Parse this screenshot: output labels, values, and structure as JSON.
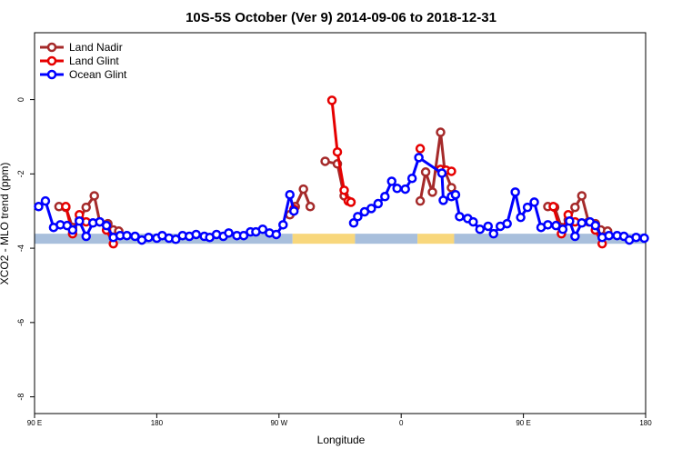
{
  "chart_data": {
    "type": "line",
    "title": "10S-5S October (Ver 9)   2014-09-06 to 2018-12-31",
    "x_label": "Longitude",
    "y_label": "XCO2 - MLO trend (ppm)",
    "xlim": [
      90,
      540
    ],
    "ylim": [
      -8.45,
      1.8
    ],
    "xticks": [
      {
        "value": 90,
        "label": "90 E"
      },
      180,
      {
        "value": 270,
        "label": "90 W"
      },
      {
        "value": 360,
        "label": "0"
      },
      {
        "value": 450,
        "label": "90 E"
      },
      {
        "value": 540,
        "label": "180"
      }
    ],
    "yticks": [
      0,
      -2,
      -4,
      -6,
      -8
    ],
    "legend": "top-left",
    "surface_band": {
      "ylim": [
        -3.88,
        -3.61
      ],
      "segments": [
        {
          "xlim": [
            90,
            280
          ],
          "color": "#a8bfdc"
        },
        {
          "xlim": [
            280,
            326
          ],
          "color": "#f8d77c"
        },
        {
          "xlim": [
            326,
            372
          ],
          "color": "#a8bfdc"
        },
        {
          "xlim": [
            372,
            399
          ],
          "color": "#f8d77c"
        },
        {
          "xlim": [
            399,
            540
          ],
          "color": "#a8bfdc"
        }
      ]
    },
    "series": [
      {
        "name": "Land Nadir",
        "color": "#a52a2a",
        "x": [
          108,
          113,
          118,
          123,
          128,
          134,
          138,
          144,
          148,
          152,
          null,
          278,
          282,
          288,
          293,
          null,
          304,
          313,
          318,
          323,
          null,
          374,
          378,
          383,
          389,
          392,
          397,
          399,
          null,
          468,
          473,
          478,
          483,
          488,
          493,
          498,
          503,
          507,
          512
        ],
        "values": [
          -2.88,
          -2.9,
          -3.44,
          -3.24,
          -2.9,
          -2.59,
          -3.29,
          -3.34,
          -3.51,
          -3.54,
          null,
          -3.1,
          -2.88,
          -2.41,
          -2.88,
          null,
          -1.66,
          -1.73,
          -2.59,
          -2.76,
          null,
          -2.73,
          -1.95,
          -2.49,
          -0.88,
          -1.9,
          -2.37,
          -2.56,
          null,
          -2.88,
          -2.9,
          -3.44,
          -3.24,
          -2.9,
          -2.59,
          -3.29,
          -3.34,
          -3.51,
          -3.54
        ]
      },
      {
        "name": "Land Glint",
        "color": "#e60000",
        "x": [
          113,
          118,
          123,
          128,
          null,
          143,
          148,
          null,
          281,
          null,
          309,
          313,
          318,
          321,
          323,
          null,
          374,
          null,
          389,
          393,
          397,
          null,
          472,
          478,
          483,
          488,
          null,
          503,
          508
        ],
        "values": [
          -2.88,
          -3.61,
          -3.1,
          -3.29,
          null,
          -3.51,
          -3.88,
          null,
          -2.95,
          null,
          -0.02,
          -1.41,
          -2.44,
          -2.73,
          -2.76,
          null,
          -1.32,
          null,
          -1.88,
          -1.9,
          -1.93,
          null,
          -2.88,
          -3.61,
          -3.1,
          -3.29,
          null,
          -3.51,
          -3.88
        ]
      },
      {
        "name": "Ocean Glint",
        "color": "#0000ff",
        "x": [
          93,
          98,
          104,
          109,
          114,
          118,
          123,
          128,
          133,
          138,
          143,
          148,
          153,
          158,
          164,
          169,
          174,
          180,
          184,
          189,
          194,
          199,
          204,
          209,
          215,
          219,
          224,
          229,
          233,
          239,
          244,
          249,
          253,
          258,
          263,
          268,
          273,
          278,
          281,
          null,
          325,
          328,
          333,
          338,
          343,
          348,
          353,
          357,
          363,
          368,
          373,
          390,
          391,
          397,
          400,
          403,
          409,
          413,
          418,
          424,
          428,
          433,
          438,
          444,
          448,
          453,
          458,
          463,
          468,
          474,
          479,
          484,
          488,
          493,
          499,
          503,
          508,
          513,
          519,
          524,
          528,
          533,
          539
        ],
        "values": [
          -2.88,
          -2.73,
          -3.44,
          -3.37,
          -3.39,
          -3.51,
          -3.27,
          -3.68,
          -3.32,
          -3.29,
          -3.39,
          -3.71,
          -3.66,
          -3.66,
          -3.68,
          -3.78,
          -3.71,
          -3.73,
          -3.66,
          -3.73,
          -3.76,
          -3.66,
          -3.68,
          -3.63,
          -3.68,
          -3.71,
          -3.63,
          -3.68,
          -3.59,
          -3.66,
          -3.66,
          -3.56,
          -3.56,
          -3.49,
          -3.59,
          -3.63,
          -3.37,
          -2.56,
          -3.0,
          null,
          -3.32,
          -3.15,
          -3.02,
          -2.93,
          -2.8,
          -2.61,
          -2.2,
          -2.39,
          -2.41,
          -2.12,
          -1.56,
          -1.98,
          -2.71,
          -2.61,
          -2.56,
          -3.15,
          -3.2,
          -3.29,
          -3.49,
          -3.41,
          -3.61,
          -3.41,
          -3.34,
          -2.49,
          -3.17,
          -2.9,
          -2.76,
          -3.44,
          -3.37,
          -3.39,
          -3.49,
          -3.27,
          -3.68,
          -3.32,
          -3.29,
          -3.39,
          -3.71,
          -3.66,
          -3.66,
          -3.68,
          -3.78,
          -3.71,
          -3.73
        ]
      }
    ]
  }
}
